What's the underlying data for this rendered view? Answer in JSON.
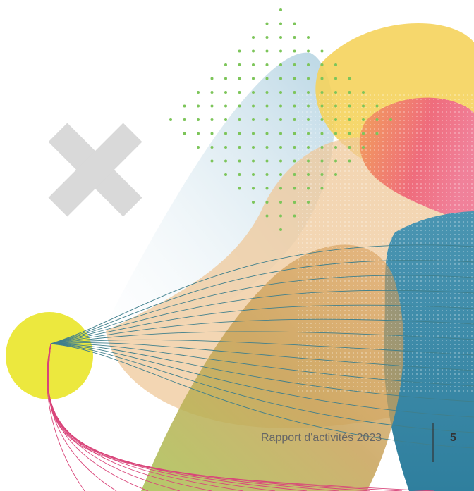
{
  "footer": {
    "report_title": "Rapport d'activités 2023",
    "page_number": "5"
  }
}
